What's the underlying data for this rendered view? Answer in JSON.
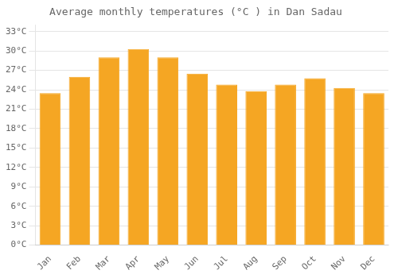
{
  "chart_data": {
    "type": "bar",
    "title": "Average monthly temperatures (°C ) in Dan Sadau",
    "categories": [
      "Jan",
      "Feb",
      "Mar",
      "Apr",
      "May",
      "Jun",
      "Jul",
      "Aug",
      "Sep",
      "Oct",
      "Nov",
      "Dec"
    ],
    "values": [
      23.5,
      26.0,
      29.0,
      30.3,
      29.0,
      26.5,
      24.8,
      23.8,
      24.8,
      25.8,
      24.3,
      23.5
    ],
    "color": "#F5A623",
    "ylim": [
      0,
      34
    ],
    "yticks": [
      {
        "value": 0,
        "label": "0°C"
      },
      {
        "value": 3,
        "label": "3°C"
      },
      {
        "value": 6,
        "label": "6°C"
      },
      {
        "value": 9,
        "label": "9°C"
      },
      {
        "value": 12,
        "label": "12°C"
      },
      {
        "value": 15,
        "label": "15°C"
      },
      {
        "value": 18,
        "label": "18°C"
      },
      {
        "value": 21,
        "label": "21°C"
      },
      {
        "value": 24,
        "label": "24°C"
      },
      {
        "value": 27,
        "label": "27°C"
      },
      {
        "value": 30,
        "label": "30°C"
      },
      {
        "value": 33,
        "label": "33°C"
      }
    ],
    "grid": true
  }
}
